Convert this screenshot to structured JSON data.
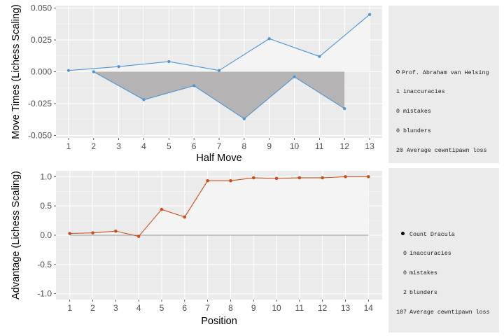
{
  "chart_data": [
    {
      "type": "line",
      "xlabel": "Half Move",
      "ylabel": "Move Times (Lichess Scaling)",
      "x": [
        1,
        2,
        3,
        4,
        5,
        6,
        7,
        8,
        9,
        10,
        11,
        12,
        13
      ],
      "xticks": [
        "1",
        "2",
        "3",
        "4",
        "5",
        "6",
        "7",
        "8",
        "9",
        "10",
        "11",
        "12",
        "13"
      ],
      "ylim": [
        -0.052,
        0.052
      ],
      "yticks": [
        -0.05,
        -0.025,
        0.0,
        0.025,
        0.05
      ],
      "ytick_labels": [
        "-0.050",
        "-0.025",
        "0.000",
        "0.025",
        "0.050"
      ],
      "grid": true,
      "series": [
        {
          "x": [
            1,
            3,
            5,
            7,
            9,
            11,
            13
          ],
          "values": [
            0.001,
            0.004,
            0.008,
            0.001,
            0.026,
            0.012,
            0.045
          ],
          "color": "#4e94d4",
          "fill": "#f4f4f4"
        },
        {
          "x": [
            2,
            4,
            6,
            8,
            10,
            12
          ],
          "values": [
            0.0,
            -0.022,
            -0.011,
            -0.037,
            -0.004,
            -0.029
          ],
          "color": "#4e94d4",
          "fill": "#b5b3b3"
        }
      ]
    },
    {
      "type": "line",
      "xlabel": "Position",
      "ylabel": "Advantage (Lichess Scaling)",
      "x": [
        1,
        2,
        3,
        4,
        5,
        6,
        7,
        8,
        9,
        10,
        11,
        12,
        13,
        14
      ],
      "xticks": [
        "1",
        "2",
        "3",
        "4",
        "5",
        "6",
        "7",
        "8",
        "9",
        "10",
        "11",
        "12",
        "13",
        "14"
      ],
      "ylim": [
        -1.1,
        1.1
      ],
      "yticks": [
        -1.0,
        -0.5,
        0.0,
        0.5,
        1.0
      ],
      "ytick_labels": [
        "-1.0",
        "-0.5",
        "0.0",
        "0.5",
        "1.0"
      ],
      "grid": true,
      "series": [
        {
          "x": [
            1,
            2,
            3,
            4,
            5,
            6,
            7,
            8,
            9,
            10,
            11,
            12,
            13,
            14
          ],
          "values": [
            0.03,
            0.04,
            0.07,
            -0.02,
            0.44,
            0.31,
            0.93,
            0.93,
            0.98,
            0.97,
            0.98,
            0.98,
            1.0,
            1.0
          ],
          "color": "#c8501e",
          "fill": "#f4f4f4"
        }
      ]
    }
  ],
  "summaries": {
    "white": {
      "name": "Prof. Abraham van Helsing",
      "inaccuracies": "1",
      "mistakes": "0",
      "blunders": "0",
      "acpl": "20",
      "inaccuracies_label": "inaccuracies",
      "mistakes_label": "mistakes",
      "blunders_label": "blunders",
      "acpl_label": "Average cewntipawn loss"
    },
    "black": {
      "name": "Count Dracula",
      "inaccuracies": "0",
      "mistakes": "0",
      "blunders": "2",
      "acpl": "187",
      "inaccuracies_label": "inaccuracies",
      "mistakes_label": "mistakes",
      "blunders_label": "blunders",
      "acpl_label": "Average cewntipawn loss"
    }
  }
}
